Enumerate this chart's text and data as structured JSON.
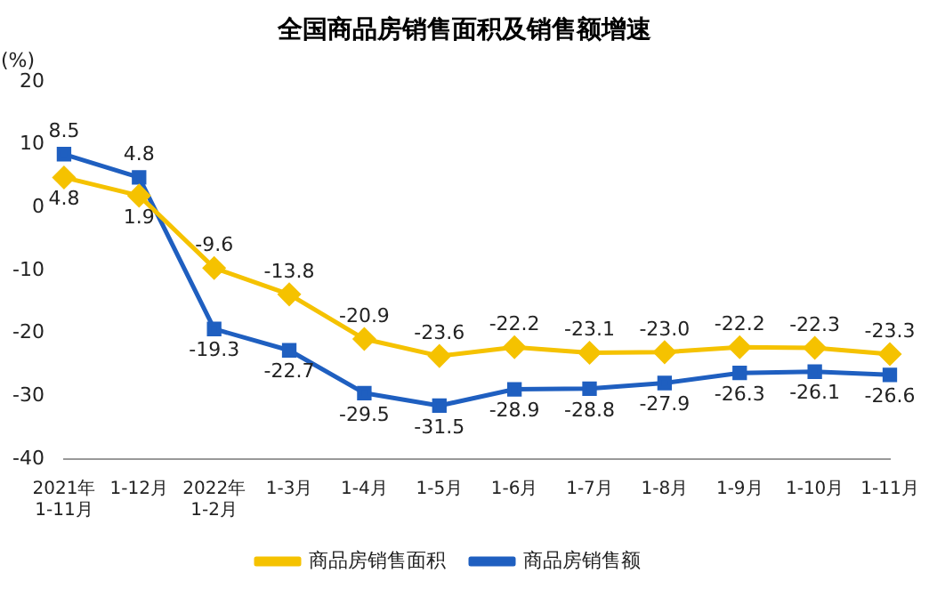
{
  "chart_data": {
    "type": "line",
    "title": "全国商品房销售面积及销售额增速",
    "ylabel": "(%)",
    "categories": [
      "2021年\n1-11月",
      "1-12月",
      "2022年\n1-2月",
      "1-3月",
      "1-4月",
      "1-5月",
      "1-6月",
      "1-7月",
      "1-8月",
      "1-9月",
      "1-10月",
      "1-11月"
    ],
    "series": [
      {
        "name": "商品房销售面积",
        "color": "#f5c200",
        "marker": "diamond",
        "values": [
          4.8,
          1.9,
          -9.6,
          -13.8,
          -20.9,
          -23.6,
          -22.2,
          -23.1,
          -23.0,
          -22.2,
          -22.3,
          -23.3
        ],
        "value_labels": [
          "4.8",
          "1.9",
          "-9.6",
          "-13.8",
          "-20.9",
          "-23.6",
          "-22.2",
          "-23.1",
          "-23.0",
          "-22.2",
          "-22.3",
          "-23.3"
        ]
      },
      {
        "name": "商品房销售额",
        "color": "#1f5fc0",
        "marker": "square",
        "values": [
          8.5,
          4.8,
          -19.3,
          -22.7,
          -29.5,
          -31.5,
          -28.9,
          -28.8,
          -27.9,
          -26.3,
          -26.1,
          -26.6
        ],
        "value_labels": [
          "8.5",
          "4.8",
          "-19.3",
          "-22.7",
          "-29.5",
          "-31.5",
          "-28.9",
          "-28.8",
          "-27.9",
          "-26.3",
          "-26.1",
          "-26.6"
        ]
      }
    ],
    "ylim": [
      -40,
      20
    ],
    "yticks": [
      -40,
      -30,
      -20,
      -10,
      0,
      10,
      20
    ],
    "grid": false,
    "legend": "bottom",
    "line_style": "solid"
  }
}
